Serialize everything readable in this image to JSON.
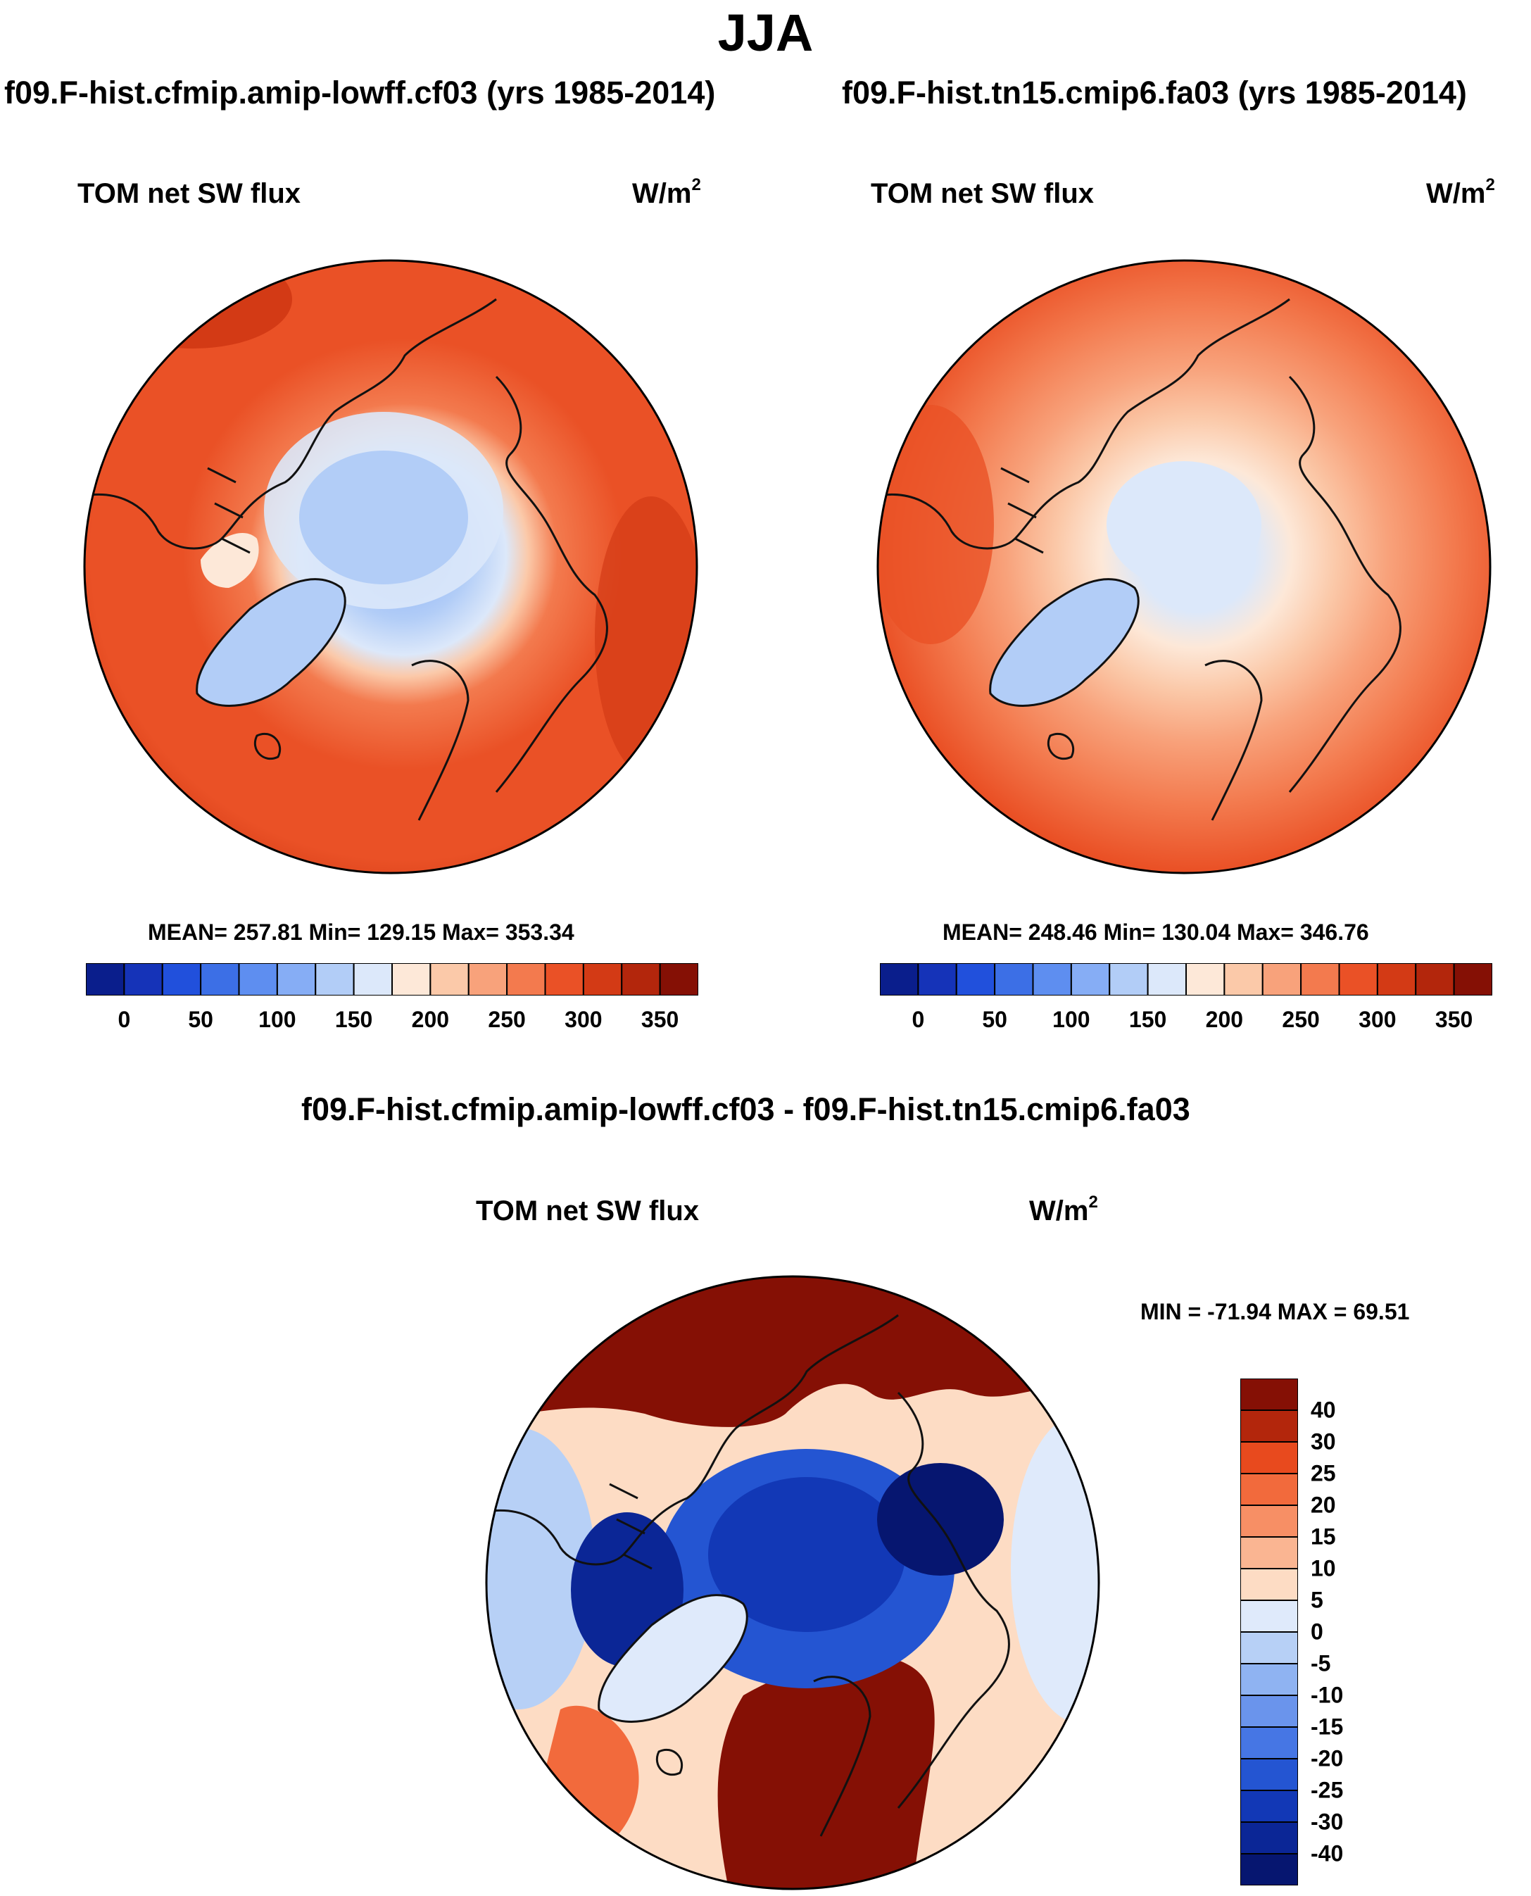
{
  "figure": {
    "title": "JJA",
    "diff_title": "f09.F-hist.cfmip.amip-lowff.cf03 - f09.F-hist.tn15.cmip6.fa03"
  },
  "panels": {
    "left": {
      "case_title": "f09.F-hist.cfmip.amip-lowff.cf03 (yrs 1985-2014)",
      "variable": "TOM net SW flux",
      "units": "W/m",
      "units_sup": "2",
      "stats": "MEAN= 257.81  Min= 129.15  Max= 353.34"
    },
    "right": {
      "case_title": "f09.F-hist.tn15.cmip6.fa03 (yrs 1985-2014)",
      "variable": "TOM net SW flux",
      "units": "W/m",
      "units_sup": "2",
      "stats": "MEAN= 248.46  Min= 130.04  Max= 346.76"
    },
    "diff": {
      "variable": "TOM net SW flux",
      "units": "W/m",
      "units_sup": "2",
      "stats": "MIN = -71.94 MAX =  69.51"
    }
  },
  "colors": {
    "abs_scale": [
      "#0a1e8c",
      "#1533b8",
      "#2150dc",
      "#3c6fe6",
      "#5e8ef0",
      "#86adf5",
      "#b2cdf7",
      "#dce8fa",
      "#fde8d8",
      "#fbc9a9",
      "#f8a27b",
      "#f37a4e",
      "#ea5126",
      "#d33a15",
      "#b3260c",
      "#851005"
    ],
    "diff_scale": [
      "#851005",
      "#b3260c",
      "#e84a1e",
      "#f26a3c",
      "#f78f65",
      "#fab592",
      "#fddcc4",
      "#dfeafb",
      "#b7d0f6",
      "#8fb3f2",
      "#6a94ec",
      "#4676e4",
      "#2455d2",
      "#1238b6",
      "#0b2696",
      "#061670"
    ]
  },
  "chart_data": [
    {
      "type": "heatmap",
      "projection": "north polar stereographic",
      "title": "f09.F-hist.cfmip.amip-lowff.cf03 (yrs 1985-2014)",
      "variable": "TOM net SW flux",
      "units": "W/m2",
      "mean": 257.81,
      "min": 129.15,
      "max": 353.34,
      "colorbar_ticks": [
        "0",
        "50",
        "100",
        "150",
        "200",
        "250",
        "300",
        "350"
      ],
      "contour_levels": [
        -20,
        0,
        25,
        50,
        75,
        100,
        125,
        150,
        175,
        200,
        225,
        250,
        275,
        300,
        325,
        350
      ]
    },
    {
      "type": "heatmap",
      "projection": "north polar stereographic",
      "title": "f09.F-hist.tn15.cmip6.fa03 (yrs 1985-2014)",
      "variable": "TOM net SW flux",
      "units": "W/m2",
      "mean": 248.46,
      "min": 130.04,
      "max": 346.76,
      "colorbar_ticks": [
        "0",
        "50",
        "100",
        "150",
        "200",
        "250",
        "300",
        "350"
      ],
      "contour_levels": [
        -20,
        0,
        25,
        50,
        75,
        100,
        125,
        150,
        175,
        200,
        225,
        250,
        275,
        300,
        325,
        350
      ]
    },
    {
      "type": "heatmap",
      "projection": "north polar stereographic",
      "title": "f09.F-hist.cfmip.amip-lowff.cf03 - f09.F-hist.tn15.cmip6.fa03",
      "variable": "TOM net SW flux",
      "units": "W/m2",
      "min": -71.94,
      "max": 69.51,
      "colorbar_ticks": [
        "40",
        "30",
        "25",
        "20",
        "15",
        "10",
        "5",
        "0",
        "-5",
        "-10",
        "-15",
        "-20",
        "-25",
        "-30",
        "-40"
      ],
      "contour_levels": [
        40,
        30,
        25,
        20,
        15,
        10,
        5,
        0,
        -5,
        -10,
        -15,
        -20,
        -25,
        -30,
        -40
      ]
    }
  ]
}
